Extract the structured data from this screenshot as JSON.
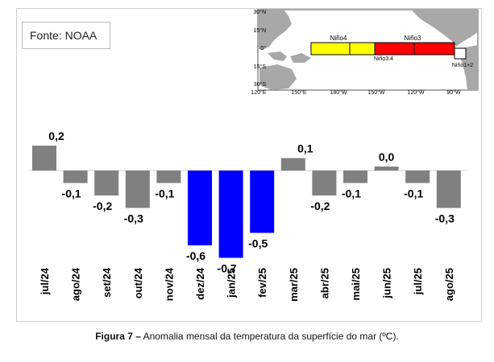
{
  "source": "Fonte: NOAA",
  "caption": {
    "label": "Figura 7 –",
    "text": "Anomalia mensal da temperatura da superfície do mar (ºC)."
  },
  "map": {
    "lat_labels": [
      "30°N",
      "15°N",
      "0°",
      "15°S",
      "30°S"
    ],
    "lon_labels": [
      "120°E",
      "150°E",
      "180°W",
      "150°W",
      "120°W",
      "90°W"
    ],
    "regions": [
      "Niño4",
      "Niño3",
      "Niño3.4",
      "Niño1+2"
    ],
    "colors": {
      "nino4": "#ffff00",
      "nino3": "#ff0000",
      "nino12": "#ffffff",
      "land": "#a8a8a8",
      "ocean": "#ffffff"
    }
  },
  "chart_data": {
    "type": "bar",
    "categories": [
      "jul/24",
      "ago/24",
      "set/24",
      "out/24",
      "nov/24",
      "dez/24",
      "jan/25",
      "fev/25",
      "mar/25",
      "abr/25",
      "mai/25",
      "jun/25",
      "jul/25",
      "ago/25"
    ],
    "values": [
      0.2,
      -0.1,
      -0.2,
      -0.3,
      -0.1,
      -0.6,
      -0.7,
      -0.5,
      0.1,
      -0.2,
      -0.1,
      0.0,
      -0.1,
      -0.3
    ],
    "value_labels": [
      "0,2",
      "-0,1",
      "-0,2",
      "-0,3",
      "-0,1",
      "-0,6",
      "-0,7",
      "-0,5",
      "0,1",
      "-0,2",
      "-0,1",
      "0,0",
      "-0,1",
      "-0,3"
    ],
    "highlighted": [
      false,
      false,
      false,
      false,
      false,
      true,
      true,
      true,
      false,
      false,
      false,
      false,
      false,
      false
    ],
    "colors": {
      "default": "#808080",
      "highlight": "#0000ff",
      "axis": "#d0d0d0"
    },
    "title": "",
    "xlabel": "",
    "ylabel": "",
    "ylim": [
      -0.7,
      0.2
    ],
    "grid": false,
    "legend": "none"
  }
}
